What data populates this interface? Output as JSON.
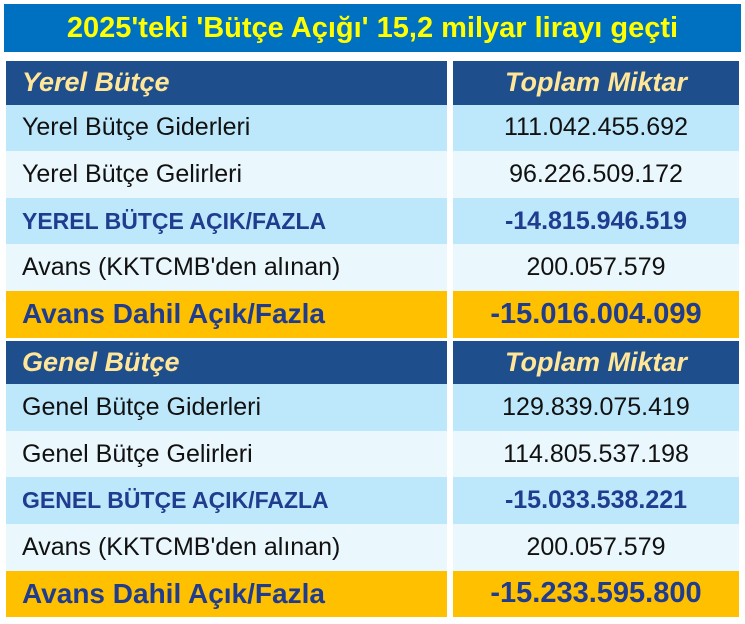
{
  "title": "2025'teki 'Bütçe Açığı' 15,2 milyar lirayı geçti",
  "local": {
    "header": {
      "label": "Yerel Bütçe",
      "amount_header": "Toplam Miktar"
    },
    "rows": [
      {
        "label": "Yerel Bütçe Giderleri",
        "value": "111.042.455.692"
      },
      {
        "label": "Yerel Bütçe Gelirleri",
        "value": "96.226.509.172"
      },
      {
        "label": "YEREL BÜTÇE AÇIK/FAZLA",
        "value": "-14.815.946.519"
      },
      {
        "label": "Avans (KKTCMB'den alınan)",
        "value": "200.057.579"
      },
      {
        "label": "Avans Dahil Açık/Fazla",
        "value": "-15.016.004.099"
      }
    ]
  },
  "general": {
    "header": {
      "label": "Genel Bütçe",
      "amount_header": "Toplam Miktar"
    },
    "rows": [
      {
        "label": "Genel Bütçe Giderleri",
        "value": "129.839.075.419"
      },
      {
        "label": "Genel Bütçe Gelirleri",
        "value": "114.805.537.198"
      },
      {
        "label": "GENEL BÜTÇE AÇIK/FAZLA",
        "value": "-15.033.538.221"
      },
      {
        "label": "Avans (KKTCMB'den alınan)",
        "value": "200.057.579"
      },
      {
        "label": "Avans Dahil Açık/Fazla",
        "value": "-15.233.595.800"
      }
    ]
  },
  "colors": {
    "title_bg": "#0070c0",
    "title_text": "#ffff00",
    "section_bg": "#1f4e8c",
    "section_text": "#ffe699",
    "row_light": "#bde7fa",
    "row_pale": "#eaf7fd",
    "total_text": "#1f3c8f",
    "highlight_bg": "#ffc000"
  }
}
